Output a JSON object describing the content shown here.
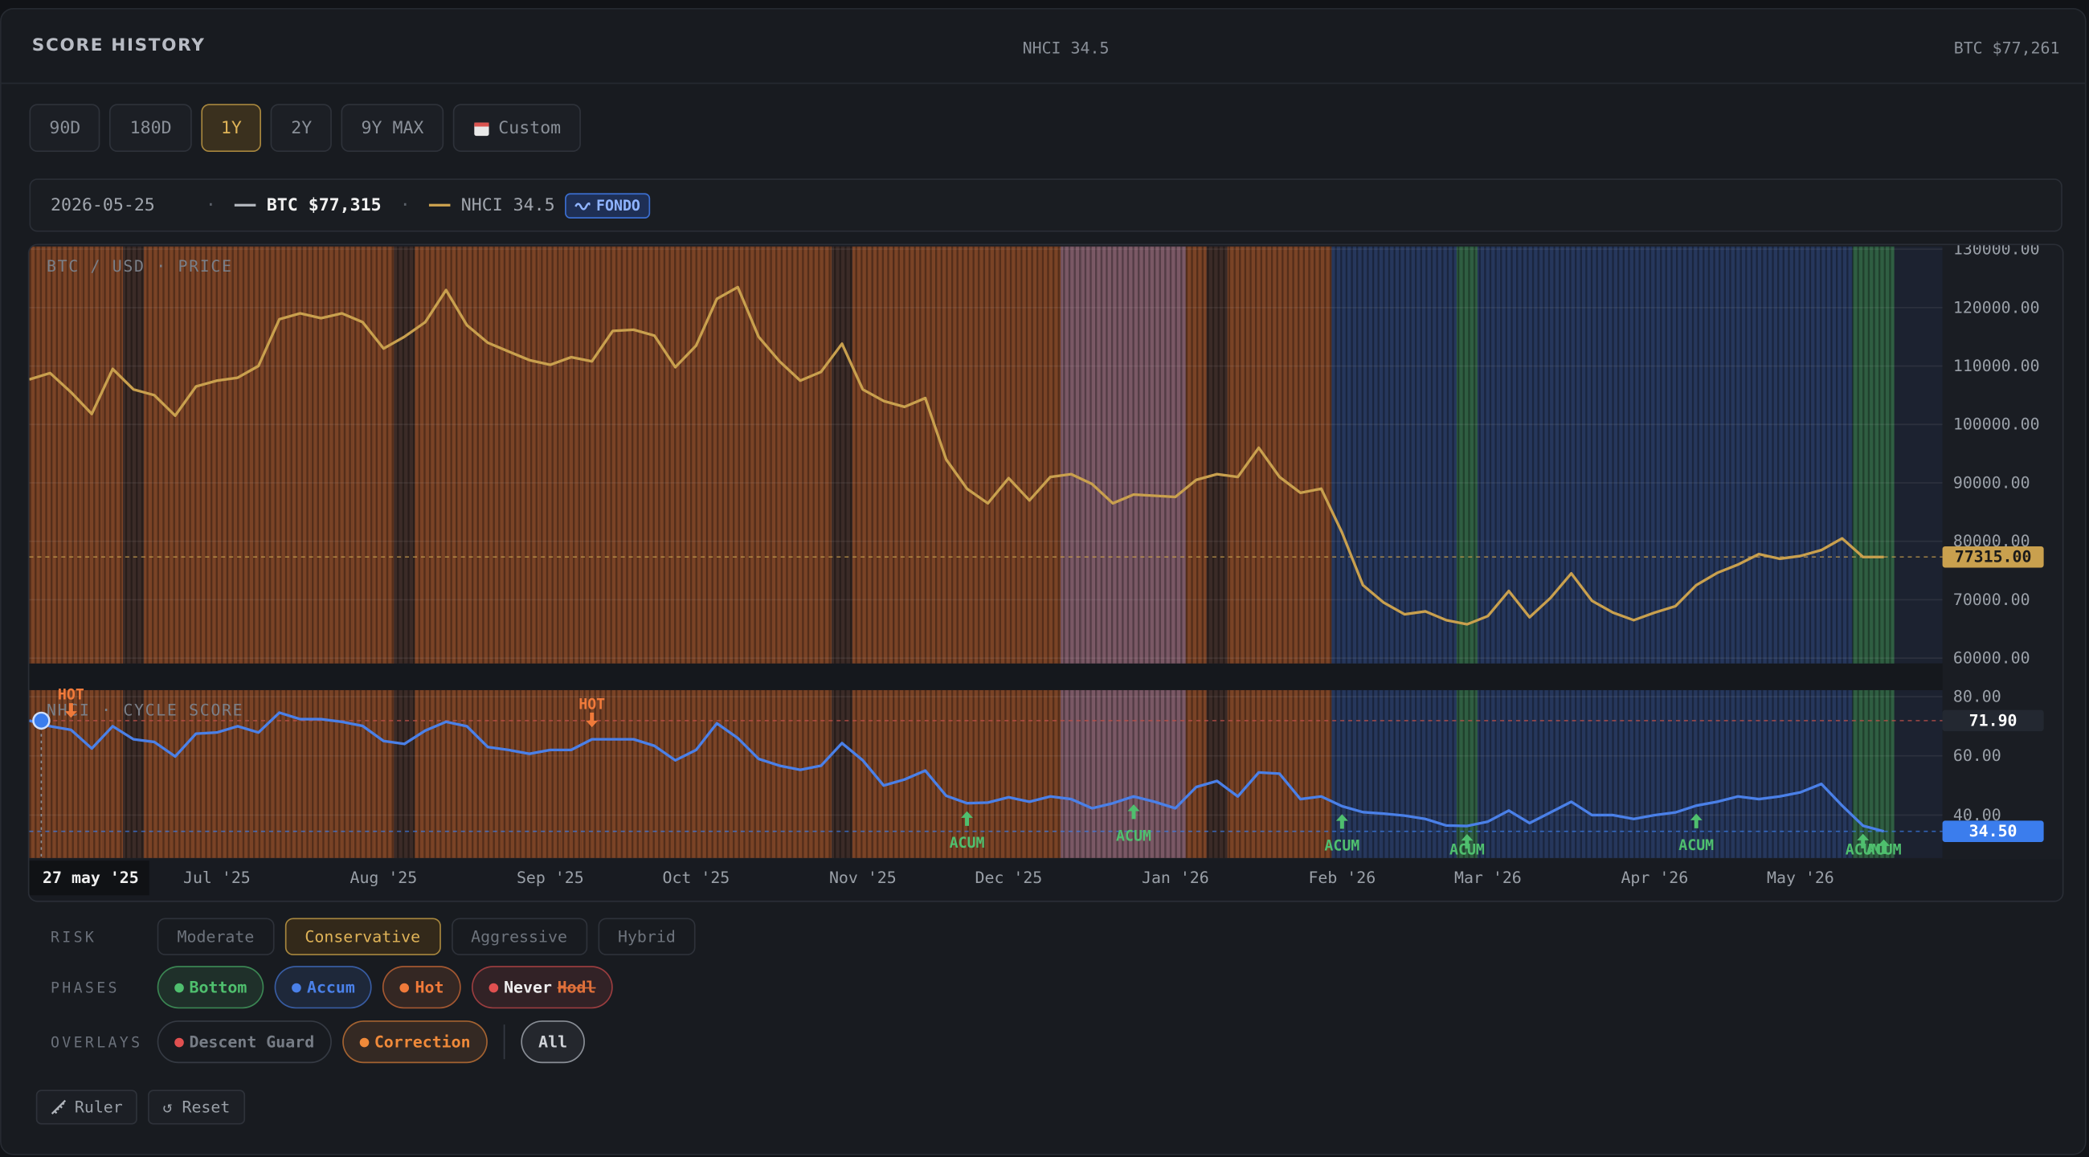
{
  "header": {
    "title": "SCORE HISTORY",
    "center": "NHCI 34.5",
    "right": "BTC $77,261"
  },
  "ranges": [
    {
      "label": "90D"
    },
    {
      "label": "180D"
    },
    {
      "label": "1Y",
      "active": true
    },
    {
      "label": "2Y"
    },
    {
      "label": "9Y MAX"
    },
    {
      "label": "Custom"
    }
  ],
  "info": {
    "date": "2026-05-25",
    "btc": "BTC $77,315",
    "nhci": "NHCI 34.5",
    "badge": "FONDO"
  },
  "chart_data": [
    {
      "type": "line",
      "title": "BTC / USD · PRICE",
      "values": [
        107700,
        108800,
        105500,
        101800,
        109500,
        106000,
        105000,
        101500,
        106500,
        107500,
        108000,
        110000,
        118000,
        119000,
        118200,
        119000,
        117500,
        113000,
        115000,
        117500,
        123000,
        117000,
        114000,
        112500,
        111000,
        110200,
        111500,
        110800,
        116000,
        116200,
        115200,
        109800,
        113500,
        121500,
        123500,
        115000,
        110800,
        107500,
        109000,
        113800,
        106000,
        104000,
        103000,
        104500,
        94000,
        89000,
        86500,
        90800,
        87000,
        91000,
        91500,
        89800,
        86500,
        88000,
        87800,
        87600,
        90500,
        91500,
        91000,
        96000,
        91000,
        88300,
        89000,
        81500,
        72500,
        69500,
        67500,
        68000,
        66500,
        65800,
        67200,
        71500,
        67000,
        70300,
        74500,
        69800,
        67800,
        66500,
        67800,
        68900,
        72500,
        74600,
        76000,
        77800,
        77000,
        77500,
        78500,
        80500,
        77300,
        77315
      ],
      "color": "#c9a04e",
      "ylim": [
        60000,
        130000
      ],
      "yticks": [
        {
          "value": 60000,
          "label": "60000.00"
        },
        {
          "value": 70000,
          "label": "70000.00"
        },
        {
          "value": 80000,
          "label": "80000.00"
        },
        {
          "value": 90000,
          "label": "90000.00"
        },
        {
          "value": 100000,
          "label": "100000.00"
        },
        {
          "value": 110000,
          "label": "110000.00"
        },
        {
          "value": 120000,
          "label": "120000.00"
        },
        {
          "value": 130000,
          "label": "130000.00"
        }
      ],
      "grid": true,
      "band_colors": [
        "#7a4326",
        "#7a4326",
        "#7a4326",
        "#7a4326",
        "#7a4326",
        "#3b2b27",
        "#7a4326",
        "#7a4326",
        "#7a4326",
        "#7a4326",
        "#7a4326",
        "#7a4326",
        "#7a4326",
        "#7a4326",
        "#7a4326",
        "#7a4326",
        "#7a4326",
        "#7a4326",
        "#3b2b27",
        "#7a4326",
        "#7a4326",
        "#7a4326",
        "#7a4326",
        "#7a4326",
        "#7a4326",
        "#7a4326",
        "#7a4326",
        "#7a4326",
        "#7a4326",
        "#7a4326",
        "#7a4326",
        "#7a4326",
        "#7a4326",
        "#7a4326",
        "#7a4326",
        "#7a4326",
        "#7a4326",
        "#7a4326",
        "#7a4326",
        "#3b2b27",
        "#7a4326",
        "#7a4326",
        "#7a4326",
        "#7a4326",
        "#7a4326",
        "#7a4326",
        "#7a4326",
        "#7a4326",
        "#7a4326",
        "#7a4326",
        "#7a5865",
        "#7a5865",
        "#7a5865",
        "#7a5865",
        "#7a5865",
        "#7a5865",
        "#7a4326",
        "#3b2b27",
        "#7a4326",
        "#7a4326",
        "#7a4326",
        "#7a4326",
        "#7a4326",
        "#26375c",
        "#26375c",
        "#26375c",
        "#26375c",
        "#26375c",
        "#26375c",
        "#2f5e42",
        "#26375c",
        "#26375c",
        "#26375c",
        "#26375c",
        "#26375c",
        "#26375c",
        "#26375c",
        "#26375c",
        "#26375c",
        "#26375c",
        "#26375c",
        "#26375c",
        "#26375c",
        "#26375c",
        "#26375c",
        "#26375c",
        "#26375c",
        "#26375c",
        "#2f5e42",
        "#2f5e42"
      ],
      "reference_lines": [
        {
          "value": 77315,
          "label": "77315.00",
          "color": "#c9a04e"
        }
      ]
    },
    {
      "type": "line",
      "title": "NHCI · CYCLE SCORE",
      "categories": [
        "27 may '25",
        null,
        null,
        null,
        null,
        null,
        null,
        null,
        null,
        "Jul '25",
        null,
        null,
        null,
        null,
        null,
        null,
        null,
        "Aug '25",
        null,
        null,
        null,
        null,
        null,
        null,
        null,
        "Sep '25",
        null,
        null,
        null,
        null,
        null,
        null,
        "Oct '25",
        null,
        null,
        null,
        null,
        null,
        null,
        null,
        "Nov '25",
        null,
        null,
        null,
        null,
        null,
        null,
        "Dec '25",
        null,
        null,
        null,
        null,
        null,
        null,
        null,
        "Jan '26",
        null,
        null,
        null,
        null,
        null,
        null,
        null,
        "Feb '26",
        null,
        null,
        null,
        null,
        null,
        null,
        "Mar '26",
        null,
        null,
        null,
        null,
        null,
        null,
        null,
        "Apr '26",
        null,
        null,
        null,
        null,
        null,
        null,
        "May '26",
        null,
        null,
        null,
        null
      ],
      "values": [
        71.9,
        70,
        68.8,
        62.5,
        70,
        65.6,
        64.7,
        59.8,
        67.5,
        67.9,
        70,
        67.9,
        74.6,
        72.4,
        72.4,
        71.5,
        70.1,
        65,
        64,
        68.5,
        71.5,
        70,
        63,
        62,
        60.7,
        62,
        62,
        65.6,
        65.6,
        65.6,
        63.4,
        58.5,
        62,
        71,
        66,
        59,
        56.7,
        55.3,
        56.7,
        64.3,
        58.5,
        50,
        52,
        55,
        46.5,
        44,
        44.2,
        46,
        44.5,
        46.3,
        45.4,
        42.3,
        44,
        46.3,
        44.5,
        42.3,
        49.5,
        51.5,
        46.3,
        54.4,
        54,
        45.4,
        46.3,
        43,
        41,
        40.5,
        39.8,
        38.7,
        36.5,
        36.3,
        37.8,
        41.5,
        37.3,
        40.9,
        44.5,
        40,
        40,
        38.7,
        40,
        40.9,
        43.2,
        44.5,
        46.3,
        45.4,
        46.3,
        47.7,
        50.5,
        43.2,
        36.4,
        34.5
      ],
      "color": "#4a80e8",
      "ylim": [
        25.5,
        82.2
      ],
      "yticks": [
        {
          "value": 40,
          "label": "40.00"
        },
        {
          "value": 60,
          "label": "60.00"
        },
        {
          "value": 80,
          "label": "80.00"
        }
      ],
      "grid": true,
      "signals": [
        null,
        null,
        {
          "label": "HOT",
          "color": "#f07a3a",
          "side": "above"
        },
        null,
        null,
        null,
        null,
        null,
        null,
        null,
        null,
        null,
        null,
        null,
        null,
        null,
        null,
        null,
        null,
        null,
        null,
        null,
        null,
        null,
        null,
        null,
        null,
        {
          "label": "HOT",
          "color": "#f07a3a",
          "side": "above"
        },
        null,
        null,
        null,
        null,
        null,
        null,
        null,
        null,
        null,
        null,
        null,
        null,
        null,
        null,
        null,
        null,
        null,
        {
          "label": "ACUM",
          "color": "#4fbf6e",
          "side": "below"
        },
        null,
        null,
        null,
        null,
        null,
        null,
        null,
        {
          "label": "ACUM",
          "color": "#4fbf6e",
          "side": "below"
        },
        null,
        null,
        null,
        null,
        null,
        null,
        null,
        null,
        null,
        {
          "label": "ACUM",
          "color": "#4fbf6e",
          "side": "below"
        },
        null,
        null,
        null,
        null,
        null,
        {
          "label": "ACUM",
          "color": "#4fbf6e",
          "side": "below"
        },
        null,
        null,
        null,
        null,
        null,
        null,
        null,
        null,
        null,
        null,
        {
          "label": "ACUM",
          "color": "#4fbf6e",
          "side": "below"
        },
        null,
        null,
        null,
        null,
        null,
        null,
        null,
        {
          "label": "ACUM",
          "color": "#4fbf6e",
          "side": "below"
        },
        {
          "label": "ACUM",
          "color": "#4fbf6e",
          "side": "below"
        }
      ],
      "reference_lines": [
        {
          "value": 71.9,
          "label": "71.90",
          "color": "#232831"
        },
        {
          "value": 34.5,
          "label": "34.50",
          "color": "#3b7ded"
        }
      ]
    }
  ],
  "controls": {
    "risk": {
      "label": "RISK",
      "options": [
        {
          "label": "Moderate"
        },
        {
          "label": "Conservative",
          "active": true
        },
        {
          "label": "Aggressive"
        },
        {
          "label": "Hybrid"
        }
      ]
    },
    "phases": {
      "label": "PHASES",
      "options": [
        {
          "label": "Bottom",
          "color": "#4fbf6e",
          "active": true
        },
        {
          "label": "Accum",
          "color": "#4a80e8",
          "active": true
        },
        {
          "label": "Hot",
          "color": "#f07a3a",
          "active": true
        },
        {
          "label": "Never",
          "strike": "Hodl",
          "color": "#e05050",
          "active": true
        }
      ]
    },
    "overlays": {
      "label": "OVERLAYS",
      "options": [
        {
          "label": "Descent Guard",
          "color": "#e05050"
        },
        {
          "label": "Correction",
          "color": "#f08a3a",
          "active": true
        },
        {
          "label": "All"
        }
      ]
    }
  },
  "tools": [
    "Ruler",
    "↺ Reset"
  ]
}
